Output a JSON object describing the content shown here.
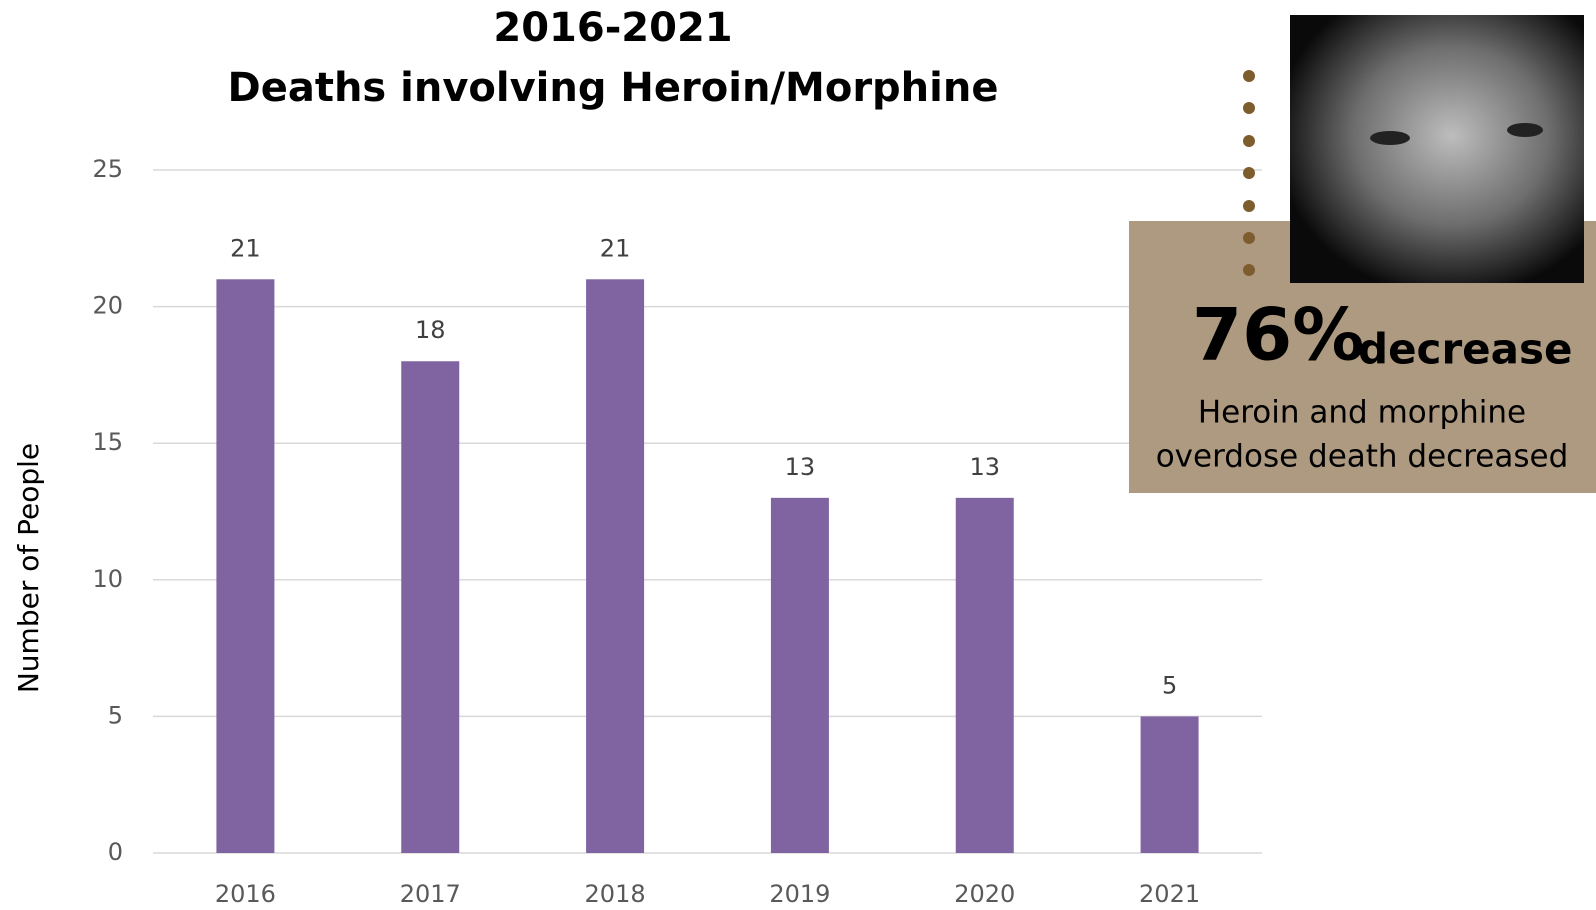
{
  "chart_data": {
    "type": "bar",
    "title": "2016-2021",
    "subtitle": "Deaths involving Heroin/Morphine",
    "y_label": "Number of People",
    "categories": [
      "2016",
      "2017",
      "2018",
      "2019",
      "2020",
      "2021"
    ],
    "values": [
      21,
      18,
      21,
      13,
      13,
      5
    ],
    "color": "#8064a2",
    "ylim": [
      0,
      25
    ],
    "yticks": [
      0,
      5,
      10,
      15,
      20,
      25
    ],
    "grid": true,
    "data_labels": true
  },
  "callout": {
    "headline": "76%",
    "headline_suffix": "decrease",
    "lines": [
      "Heroin and morphine",
      "overdose death decreased"
    ]
  }
}
